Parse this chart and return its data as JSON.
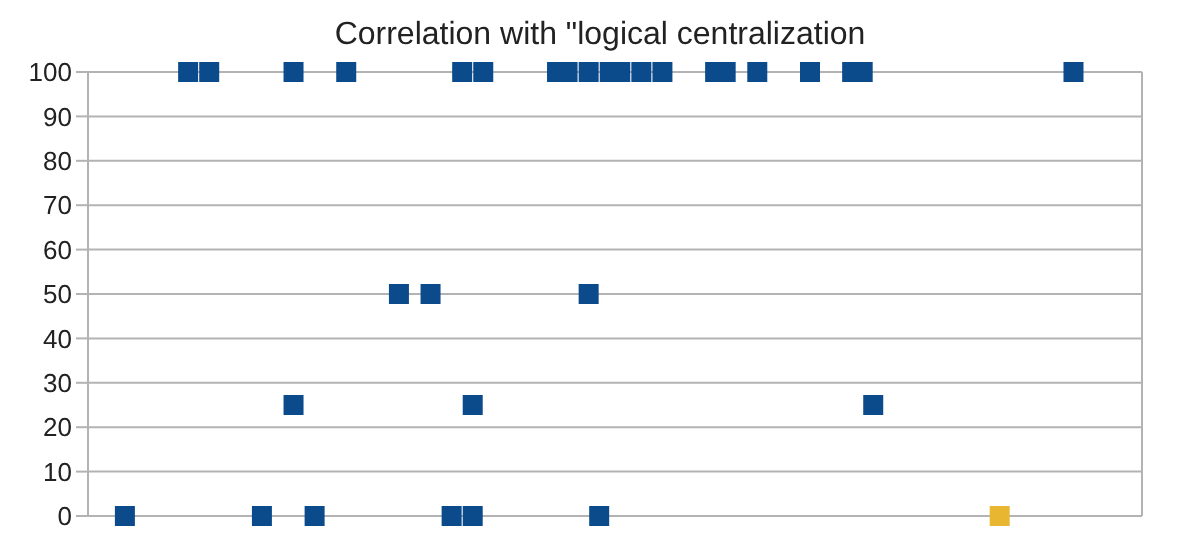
{
  "chart_data": {
    "type": "scatter",
    "title": "Correlation with \"logical centralization",
    "categories": [
      null,
      null,
      null,
      null,
      null,
      null,
      null,
      null,
      null,
      null,
      null,
      null,
      null,
      null,
      null,
      null,
      null,
      null,
      null,
      null,
      null,
      null,
      null,
      null,
      null,
      null,
      null,
      null,
      null,
      null,
      null,
      null,
      null,
      null,
      null,
      null,
      null,
      null,
      null,
      null,
      null,
      null,
      null,
      null,
      null,
      null,
      null,
      null,
      null,
      null,
      null,
      null,
      null,
      null,
      null,
      null,
      null,
      null,
      null,
      null,
      null,
      null,
      null,
      null,
      null,
      null,
      null,
      null,
      null,
      null,
      null,
      null,
      null,
      null,
      null,
      null,
      null,
      null,
      null,
      null,
      null,
      null,
      null,
      null,
      null,
      null,
      null,
      null,
      null,
      null,
      null,
      null,
      null,
      null,
      null,
      null,
      null,
      null,
      null,
      null
    ],
    "series": [
      {
        "color": "#0b4a8b",
        "values": [
          null,
          null,
          null,
          null,
          null,
          null,
          null,
          null,
          null,
          100,
          null,
          100,
          null,
          null,
          null,
          null,
          null,
          null,
          null,
          100,
          null,
          null,
          null,
          null,
          100,
          null,
          null,
          null,
          null,
          null,
          null,
          null,
          null,
          null,
          null,
          100,
          null,
          100,
          null,
          null,
          null,
          null,
          null,
          null,
          100,
          100,
          null,
          100,
          null,
          100,
          100,
          null,
          100,
          null,
          100,
          null,
          null,
          null,
          null,
          100,
          100,
          null,
          null,
          100,
          null,
          null,
          null,
          null,
          100,
          null,
          null,
          null,
          100,
          100,
          null,
          null,
          null,
          null,
          null,
          null,
          null,
          null,
          null,
          null,
          null,
          null,
          null,
          null,
          null,
          null,
          null,
          null,
          null,
          100,
          null,
          null,
          null,
          null,
          null,
          null
        ]
      },
      {
        "color": "#0b4a8b",
        "values": [
          null,
          null,
          null,
          null,
          null,
          null,
          null,
          null,
          null,
          null,
          null,
          null,
          null,
          null,
          null,
          null,
          null,
          null,
          null,
          null,
          null,
          null,
          null,
          null,
          null,
          null,
          null,
          null,
          null,
          50,
          null,
          null,
          50,
          null,
          null,
          null,
          null,
          null,
          null,
          null,
          null,
          null,
          null,
          null,
          null,
          null,
          null,
          50,
          null,
          null,
          null,
          null,
          null,
          null,
          null,
          null,
          null,
          null,
          null,
          null,
          null,
          null,
          null,
          null,
          null,
          null,
          null,
          null,
          null,
          null,
          null,
          null,
          null,
          null,
          null,
          null,
          null,
          null,
          null,
          null,
          null,
          null,
          null,
          null,
          null,
          null,
          null,
          null,
          null,
          null,
          null,
          null,
          null,
          null,
          null,
          null,
          null,
          null,
          null,
          null
        ]
      },
      {
        "color": "#0b4a8b",
        "values": [
          null,
          null,
          null,
          null,
          null,
          null,
          null,
          null,
          null,
          null,
          null,
          null,
          null,
          null,
          null,
          null,
          null,
          null,
          null,
          25,
          null,
          null,
          null,
          null,
          null,
          null,
          null,
          null,
          null,
          null,
          null,
          null,
          null,
          null,
          null,
          null,
          25,
          null,
          null,
          null,
          null,
          null,
          null,
          null,
          null,
          null,
          null,
          null,
          null,
          null,
          null,
          null,
          null,
          null,
          null,
          null,
          null,
          null,
          null,
          null,
          null,
          null,
          null,
          null,
          null,
          null,
          null,
          null,
          null,
          null,
          null,
          null,
          null,
          null,
          25,
          null,
          null,
          null,
          null,
          null,
          null,
          null,
          null,
          null,
          null,
          null,
          null,
          null,
          null,
          null,
          null,
          null,
          null,
          null,
          null,
          null,
          null,
          null,
          null,
          null
        ]
      },
      {
        "color": "#0b4a8b",
        "values": [
          null,
          null,
          null,
          0,
          null,
          null,
          null,
          null,
          null,
          null,
          null,
          null,
          null,
          null,
          null,
          null,
          0,
          null,
          null,
          null,
          null,
          0,
          null,
          null,
          null,
          null,
          null,
          null,
          null,
          null,
          null,
          null,
          null,
          null,
          0,
          null,
          0,
          null,
          null,
          null,
          null,
          null,
          null,
          null,
          null,
          null,
          null,
          null,
          0,
          null,
          null,
          null,
          null,
          null,
          null,
          null,
          null,
          null,
          null,
          null,
          null,
          null,
          null,
          null,
          null,
          null,
          null,
          null,
          null,
          null,
          null,
          null,
          null,
          null,
          null,
          null,
          null,
          null,
          null,
          null,
          null,
          null,
          null,
          null,
          null,
          null,
          null,
          null,
          null,
          null,
          null,
          null,
          null,
          null,
          null,
          null,
          null,
          null,
          null,
          null
        ]
      },
      {
        "color": "#e8b630",
        "values": [
          null,
          null,
          null,
          null,
          null,
          null,
          null,
          null,
          null,
          null,
          null,
          null,
          null,
          null,
          null,
          null,
          null,
          null,
          null,
          null,
          null,
          null,
          null,
          null,
          null,
          null,
          null,
          null,
          null,
          null,
          null,
          null,
          null,
          null,
          null,
          null,
          null,
          null,
          null,
          null,
          null,
          null,
          null,
          null,
          null,
          null,
          null,
          null,
          null,
          null,
          null,
          null,
          null,
          null,
          null,
          null,
          null,
          null,
          null,
          null,
          null,
          null,
          null,
          null,
          null,
          null,
          null,
          null,
          null,
          null,
          null,
          null,
          null,
          null,
          null,
          null,
          null,
          null,
          null,
          null,
          null,
          null,
          null,
          null,
          null,
          null,
          0,
          null,
          null,
          null,
          null,
          null,
          null,
          null,
          null,
          null,
          null,
          null,
          null,
          null
        ]
      }
    ],
    "ylim": [
      0,
      100
    ],
    "yticks": [
      0,
      10,
      20,
      30,
      40,
      50,
      60,
      70,
      80,
      90,
      100
    ],
    "grid": "y",
    "marker": "square",
    "tick_labels": "y"
  }
}
